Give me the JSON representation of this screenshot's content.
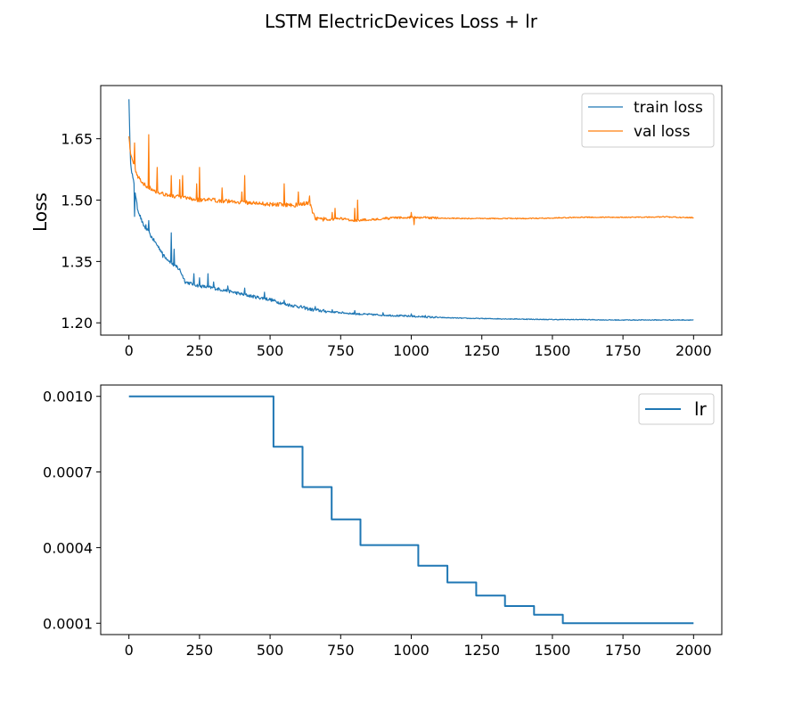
{
  "figure": {
    "title": "LSTM ElectricDevices Loss + lr"
  },
  "colors": {
    "train": "#1f77b4",
    "val": "#ff7f0e",
    "lr": "#1f77b4",
    "axis": "#000000",
    "legend_border": "#cccccc"
  },
  "chart_data": [
    {
      "type": "line",
      "title": "",
      "xlabel": "",
      "ylabel": "Loss",
      "xlim": [
        -100,
        2100
      ],
      "ylim": [
        1.17,
        1.78
      ],
      "xticks": [
        0,
        250,
        500,
        750,
        1000,
        1250,
        1500,
        1750,
        2000
      ],
      "xtick_labels": [
        "0",
        "250",
        "500",
        "750",
        "1000",
        "1250",
        "1500",
        "1750",
        "2000"
      ],
      "yticks": [
        1.2,
        1.35,
        1.5,
        1.65
      ],
      "ytick_labels": [
        "1.20",
        "1.35",
        "1.50",
        "1.65"
      ],
      "grid": false,
      "legend": "top-right",
      "series": [
        {
          "name": "train loss",
          "color": "#1f77b4",
          "x": [
            0,
            5,
            10,
            20,
            30,
            50,
            70,
            100,
            130,
            160,
            180,
            200,
            250,
            300,
            350,
            400,
            450,
            500,
            550,
            600,
            650,
            700,
            750,
            800,
            900,
            1000,
            1100,
            1200,
            1300,
            1400,
            1500,
            1600,
            1700,
            1800,
            1900,
            2000
          ],
          "y": [
            1.75,
            1.6,
            1.57,
            1.53,
            1.48,
            1.44,
            1.42,
            1.39,
            1.36,
            1.34,
            1.33,
            1.3,
            1.29,
            1.285,
            1.278,
            1.27,
            1.263,
            1.257,
            1.246,
            1.24,
            1.232,
            1.228,
            1.225,
            1.222,
            1.219,
            1.216,
            1.213,
            1.211,
            1.21,
            1.209,
            1.208,
            1.208,
            1.207,
            1.207,
            1.207,
            1.207
          ]
        },
        {
          "name": "val loss",
          "color": "#ff7f0e",
          "x": [
            0,
            5,
            10,
            20,
            30,
            50,
            75,
            100,
            150,
            200,
            250,
            300,
            400,
            500,
            600,
            640,
            650,
            660,
            700,
            750,
            800,
            850,
            900,
            1000,
            1100,
            1200,
            1300,
            1400,
            1500,
            1600,
            1700,
            1800,
            1900,
            2000
          ],
          "y": [
            1.66,
            1.62,
            1.6,
            1.58,
            1.56,
            1.54,
            1.53,
            1.52,
            1.51,
            1.505,
            1.5,
            1.5,
            1.495,
            1.49,
            1.488,
            1.495,
            1.47,
            1.455,
            1.452,
            1.455,
            1.45,
            1.452,
            1.455,
            1.458,
            1.456,
            1.455,
            1.455,
            1.455,
            1.456,
            1.458,
            1.458,
            1.458,
            1.459,
            1.457
          ]
        }
      ],
      "spikes": [
        {
          "series": 0,
          "x": [
            20,
            45,
            60,
            70,
            75,
            85,
            120,
            150,
            155,
            160,
            170,
            230,
            250,
            280,
            300,
            350,
            410,
            480,
            550,
            660,
            720,
            800,
            900,
            1000,
            1050
          ],
          "y": [
            1.46,
            1.43,
            1.44,
            1.45,
            1.46,
            1.43,
            1.36,
            1.42,
            1.4,
            1.38,
            1.34,
            1.32,
            1.31,
            1.32,
            1.3,
            1.29,
            1.285,
            1.275,
            1.255,
            1.24,
            1.232,
            1.23,
            1.225,
            1.222,
            1.218
          ]
        },
        {
          "series": 1,
          "x": [
            20,
            70,
            75,
            100,
            150,
            180,
            190,
            240,
            250,
            330,
            400,
            410,
            550,
            600,
            640,
            720,
            730,
            800,
            810,
            1000,
            1010
          ],
          "y": [
            1.64,
            1.66,
            1.67,
            1.58,
            1.56,
            1.55,
            1.56,
            1.54,
            1.58,
            1.53,
            1.52,
            1.56,
            1.54,
            1.52,
            1.51,
            1.47,
            1.48,
            1.48,
            1.5,
            1.47,
            1.44
          ]
        }
      ]
    },
    {
      "type": "line",
      "title": "",
      "xlabel": "",
      "ylabel": "",
      "xlim": [
        -100,
        2100
      ],
      "ylim": [
        5.5e-05,
        0.001045
      ],
      "xticks": [
        0,
        250,
        500,
        750,
        1000,
        1250,
        1500,
        1750,
        2000
      ],
      "xtick_labels": [
        "0",
        "250",
        "500",
        "750",
        "1000",
        "1250",
        "1500",
        "1750",
        "2000"
      ],
      "yticks": [
        0.0001,
        0.0004,
        0.0007,
        0.001
      ],
      "ytick_labels": [
        "0.0001",
        "0.0004",
        "0.0007",
        "0.0010"
      ],
      "grid": false,
      "legend": "top-right",
      "series": [
        {
          "name": "lr",
          "color": "#1f77b4",
          "step": true,
          "x": [
            0,
            512,
            512,
            615,
            615,
            718,
            718,
            820,
            820,
            1025,
            1025,
            1128,
            1128,
            1230,
            1230,
            1332,
            1332,
            1435,
            1435,
            1537,
            1537,
            2000
          ],
          "y": [
            0.001,
            0.001,
            0.0008,
            0.0008,
            0.00064,
            0.00064,
            0.000512,
            0.000512,
            0.00041,
            0.00041,
            0.000328,
            0.000328,
            0.000262,
            0.000262,
            0.00021,
            0.00021,
            0.000168,
            0.000168,
            0.000134,
            0.000134,
            0.0001,
            0.0001
          ]
        }
      ]
    }
  ]
}
